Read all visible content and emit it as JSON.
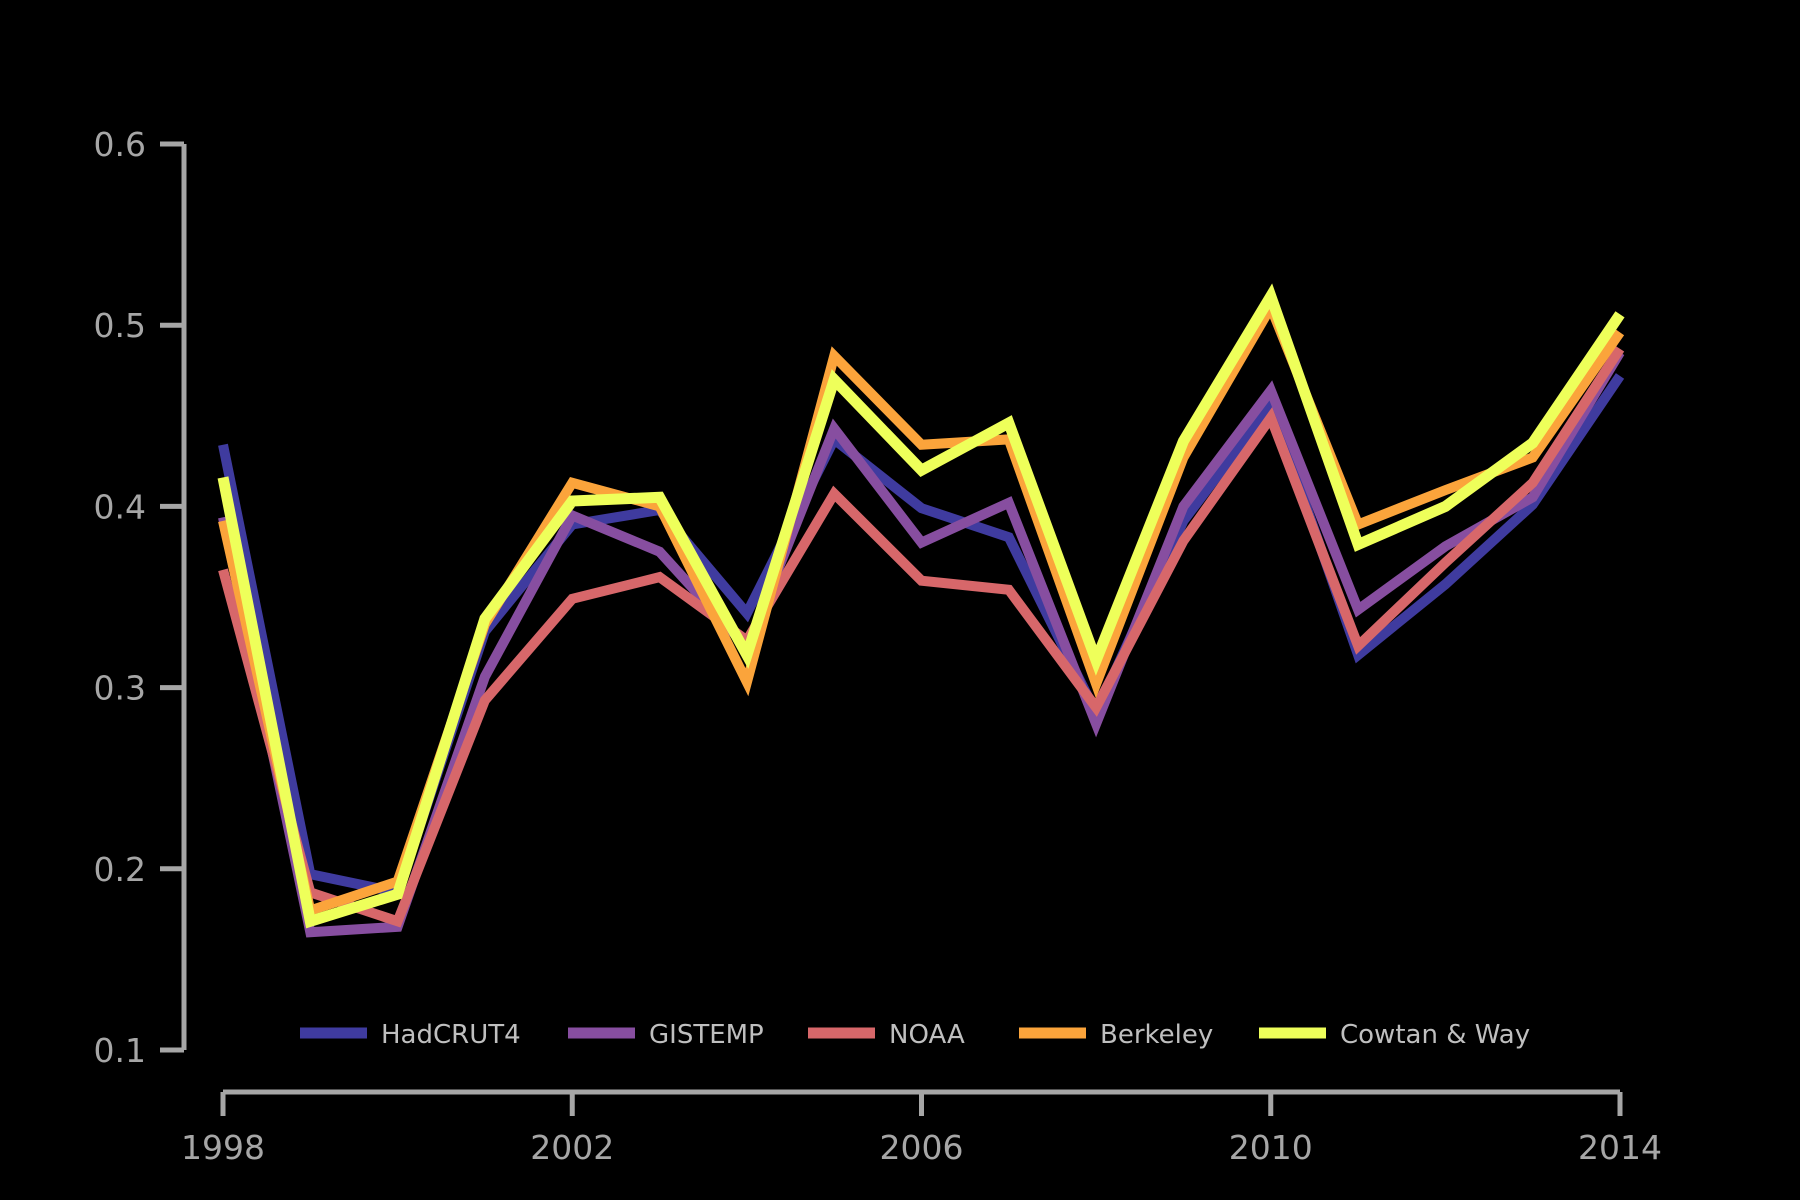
{
  "chart_data": {
    "type": "line",
    "title": "",
    "xlabel": "",
    "ylabel": "",
    "xlim": [
      1998,
      2014
    ],
    "ylim": [
      0.1,
      0.6
    ],
    "x_ticks": [
      1998,
      2002,
      2006,
      2010,
      2014
    ],
    "x_tick_labels": [
      "1998",
      "2002",
      "2006",
      "2010",
      "2014"
    ],
    "y_ticks": [
      0.1,
      0.2,
      0.3,
      0.4,
      0.5,
      0.6
    ],
    "y_tick_labels": [
      "0.1",
      "0.2",
      "0.3",
      "0.4",
      "0.5",
      "0.6"
    ],
    "grid": false,
    "legend_position": "bottom",
    "background": "#000000",
    "axis_color": "#a6a6a6",
    "x": [
      1998,
      1999,
      2000,
      2001,
      2002,
      2003,
      2004,
      2005,
      2006,
      2007,
      2008,
      2009,
      2010,
      2011,
      2012,
      2013,
      2014
    ],
    "series": [
      {
        "name": "HadCRUT4",
        "color": "#3f3b9f",
        "values": [
          0.434,
          0.197,
          0.187,
          0.331,
          0.39,
          0.398,
          0.341,
          0.437,
          0.399,
          0.383,
          0.286,
          0.392,
          0.456,
          0.318,
          0.357,
          0.401,
          0.472
        ]
      },
      {
        "name": "GISTEMP",
        "color": "#874ea0",
        "values": [
          0.394,
          0.165,
          0.168,
          0.306,
          0.395,
          0.375,
          0.322,
          0.443,
          0.38,
          0.402,
          0.28,
          0.4,
          0.464,
          0.343,
          0.378,
          0.405,
          0.485
        ]
      },
      {
        "name": "NOAA",
        "color": "#d7676a",
        "values": [
          0.365,
          0.187,
          0.171,
          0.293,
          0.349,
          0.361,
          0.326,
          0.407,
          0.359,
          0.354,
          0.289,
          0.381,
          0.449,
          0.323,
          0.369,
          0.413,
          0.487
        ]
      },
      {
        "name": "Berkeley",
        "color": "#fba43b",
        "values": [
          0.392,
          0.177,
          0.193,
          0.335,
          0.413,
          0.4,
          0.303,
          0.483,
          0.434,
          0.437,
          0.302,
          0.427,
          0.51,
          0.39,
          0.409,
          0.427,
          0.496
        ]
      },
      {
        "name": "Cowtan & Way",
        "color": "#eeff5a",
        "values": [
          0.416,
          0.171,
          0.186,
          0.338,
          0.403,
          0.405,
          0.318,
          0.47,
          0.42,
          0.446,
          0.315,
          0.436,
          0.516,
          0.379,
          0.4,
          0.435,
          0.506
        ]
      }
    ]
  }
}
